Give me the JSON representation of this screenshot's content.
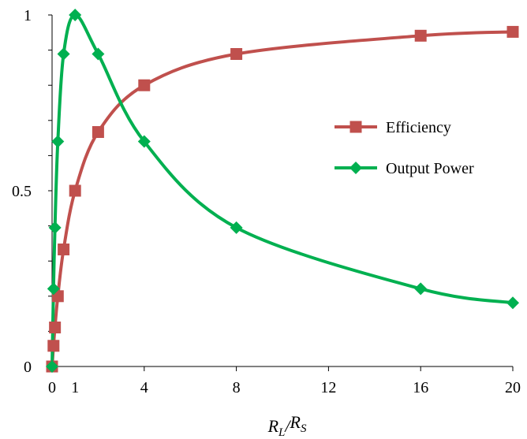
{
  "chart_data": {
    "type": "line",
    "x_ticks": [
      0,
      1,
      4,
      8,
      12,
      16,
      20
    ],
    "y_ticks": [
      0,
      0.5,
      1
    ],
    "y_tick_labels": [
      "0",
      "0.5",
      "1"
    ],
    "xlim": [
      0,
      20
    ],
    "ylim": [
      0,
      1
    ],
    "xlabel": {
      "main": "R",
      "sub1": "L",
      "sep": "/",
      "main2": "R",
      "sub2": "S"
    },
    "grid": false,
    "legend_position": "right",
    "series": [
      {
        "name": "Efficiency",
        "color": "#c0504d",
        "marker": "square",
        "x": [
          0,
          0.0625,
          0.125,
          0.25,
          0.5,
          1,
          2,
          4,
          8,
          16,
          20
        ],
        "y": [
          0,
          0.0588,
          0.111,
          0.2,
          0.333,
          0.5,
          0.667,
          0.8,
          0.889,
          0.941,
          0.952
        ]
      },
      {
        "name": "Output Power",
        "color": "#00b050",
        "marker": "diamond",
        "x": [
          0,
          0.0625,
          0.125,
          0.25,
          0.5,
          1,
          2,
          4,
          8,
          16,
          20
        ],
        "y": [
          0,
          0.221,
          0.395,
          0.64,
          0.889,
          1,
          0.889,
          0.64,
          0.395,
          0.221,
          0.181
        ]
      }
    ]
  }
}
